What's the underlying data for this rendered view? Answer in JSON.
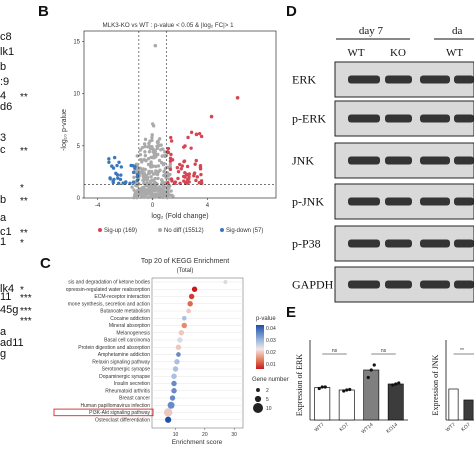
{
  "heatmap_genes": {
    "rows": [
      {
        "name": "c8",
        "sig": ""
      },
      {
        "name": "lk1",
        "sig": ""
      },
      {
        "name": "b",
        "sig": ""
      },
      {
        "name": ":9",
        "sig": ""
      },
      {
        "name": "4",
        "sig": "**"
      },
      {
        "name": "d6",
        "sig": ""
      },
      {
        "name": "3",
        "sig": ""
      },
      {
        "name": "c",
        "sig": "**"
      },
      {
        "name": "",
        "sig": "*"
      },
      {
        "name": "b",
        "sig": "**"
      },
      {
        "name": "a",
        "sig": ""
      },
      {
        "name": "c1",
        "sig": "**"
      },
      {
        "name": "1",
        "sig": "*"
      },
      {
        "name": "lk4",
        "sig": "*"
      },
      {
        "name": "11",
        "sig": "***"
      },
      {
        "name": "45g",
        "sig": "***"
      },
      {
        "name": "",
        "sig": "***"
      },
      {
        "name": "a",
        "sig": ""
      },
      {
        "name": "ad11",
        "sig": ""
      },
      {
        "name": "g",
        "sig": ""
      }
    ]
  },
  "chart_data": [
    {
      "panel": "B",
      "type": "scatter",
      "title": "MLK3-KO vs WT : p-value < 0.05 & |log₂ FC|> 1",
      "xlabel": "log₂ (Fold change)",
      "ylabel": "-log₁₀ p-value",
      "xlim": [
        -5,
        9
      ],
      "ylim": [
        0,
        16
      ],
      "xticks": [
        "-4",
        "0",
        "4"
      ],
      "yticks": [
        "0",
        "5",
        "10",
        "15"
      ],
      "thresholds": {
        "x": [
          -1,
          1
        ],
        "y": 1.3
      },
      "legend": [
        {
          "name": "Sig-up (169)",
          "color": "#d64553"
        },
        {
          "name": "No diff (15512)",
          "color": "#aaaaaa"
        },
        {
          "name": "Sig-down (57)",
          "color": "#3a78bd"
        }
      ],
      "highlight_points": [
        {
          "x": 6.2,
          "y": 9.6,
          "group": "up"
        },
        {
          "x": 4.3,
          "y": 7.8,
          "group": "up"
        },
        {
          "x": 3.2,
          "y": 6.1,
          "group": "up"
        },
        {
          "x": 0.2,
          "y": 14.6,
          "group": "none"
        }
      ],
      "counts": {
        "up": 169,
        "none": 15512,
        "down": 57
      }
    },
    {
      "panel": "C",
      "type": "scatter",
      "title": "Top 20 of  KEGG Enrichment",
      "subtitle": "(Total)",
      "xlabel": "Enrichment score",
      "xticks": [
        "10",
        "20",
        "30"
      ],
      "xlim": [
        2,
        33
      ],
      "size_legend_title": "Gene number",
      "size_legend": [
        2,
        5,
        10
      ],
      "color_legend_title": "p-value",
      "color_ticks": [
        "0.04",
        "0.03",
        "0.02",
        "0.01"
      ],
      "highlight": "PI3K-Akt signaling pathway",
      "categories": [
        "sis and degradation of ketone bodies",
        "opressin-regulated water reabsorption",
        "ECM-receptor interaction",
        "mone synthesis, secretion and action",
        "Butanoate metabolism",
        "Cocaine addiction",
        "Mineral absorption",
        "Melanogenesis",
        "Basal cell carcinoma",
        "Protein digestion and absorption",
        "Amphetamine addiction",
        "Relaxin signaling pathway",
        "Serotonergic synapse",
        "Dopaminergic synapse",
        "Insulin secretion",
        "Rheumatoid arthritis",
        "Breast cancer",
        "Human papillomavirus infection",
        "PI3K-Akt signaling pathway",
        "Osteoclast differentiation"
      ],
      "values": [
        27,
        16.5,
        15.5,
        15,
        14.5,
        13,
        13,
        12,
        11.5,
        11,
        11,
        10.5,
        10,
        9.5,
        9.5,
        9.5,
        9,
        8.5,
        7.5,
        7.5
      ],
      "gene_number": [
        2,
        4,
        4,
        4,
        3,
        3,
        4,
        4,
        4,
        4,
        3,
        4,
        4,
        4,
        4,
        4,
        4,
        6,
        8,
        5
      ],
      "p_value": [
        0.025,
        0.005,
        0.008,
        0.012,
        0.02,
        0.03,
        0.015,
        0.02,
        0.025,
        0.02,
        0.035,
        0.03,
        0.03,
        0.03,
        0.035,
        0.035,
        0.035,
        0.035,
        0.02,
        0.04
      ]
    },
    {
      "panel": "E",
      "type": "bar",
      "ylabel": "Expression of ERK",
      "categories": [
        "WT7",
        "KO7",
        "WT14",
        "KO14"
      ],
      "values": [
        0.65,
        0.6,
        1.0,
        0.72
      ],
      "points": [
        [
          0.63,
          0.66,
          0.66
        ],
        [
          0.58,
          0.6,
          0.61
        ],
        [
          0.85,
          1.0,
          1.1
        ],
        [
          0.7,
          0.72,
          0.74
        ]
      ],
      "colors": [
        "#ffffff",
        "#ffffff",
        "#7f7f7f",
        "#3c3c3c"
      ],
      "ylim": [
        0,
        1.6
      ],
      "sig": [
        "ns",
        "ns"
      ]
    },
    {
      "panel": "E",
      "type": "bar",
      "ylabel": "Expression of JNK",
      "categories": [
        "WT7",
        "KO7"
      ],
      "values": [
        0.62,
        0.4
      ],
      "colors": [
        "#ffffff",
        "#3c3c3c"
      ],
      "ylim": [
        0,
        1.6
      ],
      "sig": [
        "**"
      ]
    }
  ],
  "western_blot": {
    "panel": "D",
    "groups": [
      {
        "label": "day 7"
      },
      {
        "label": "da"
      }
    ],
    "lanes": [
      "WT",
      "KO"
    ],
    "lanes_partial": [
      "WT"
    ],
    "proteins": [
      "ERK",
      "p-ERK",
      "JNK",
      "p-JNK",
      "p-P38",
      "GAPDH"
    ]
  },
  "panel_letters": [
    "B",
    "C",
    "D",
    "E"
  ]
}
